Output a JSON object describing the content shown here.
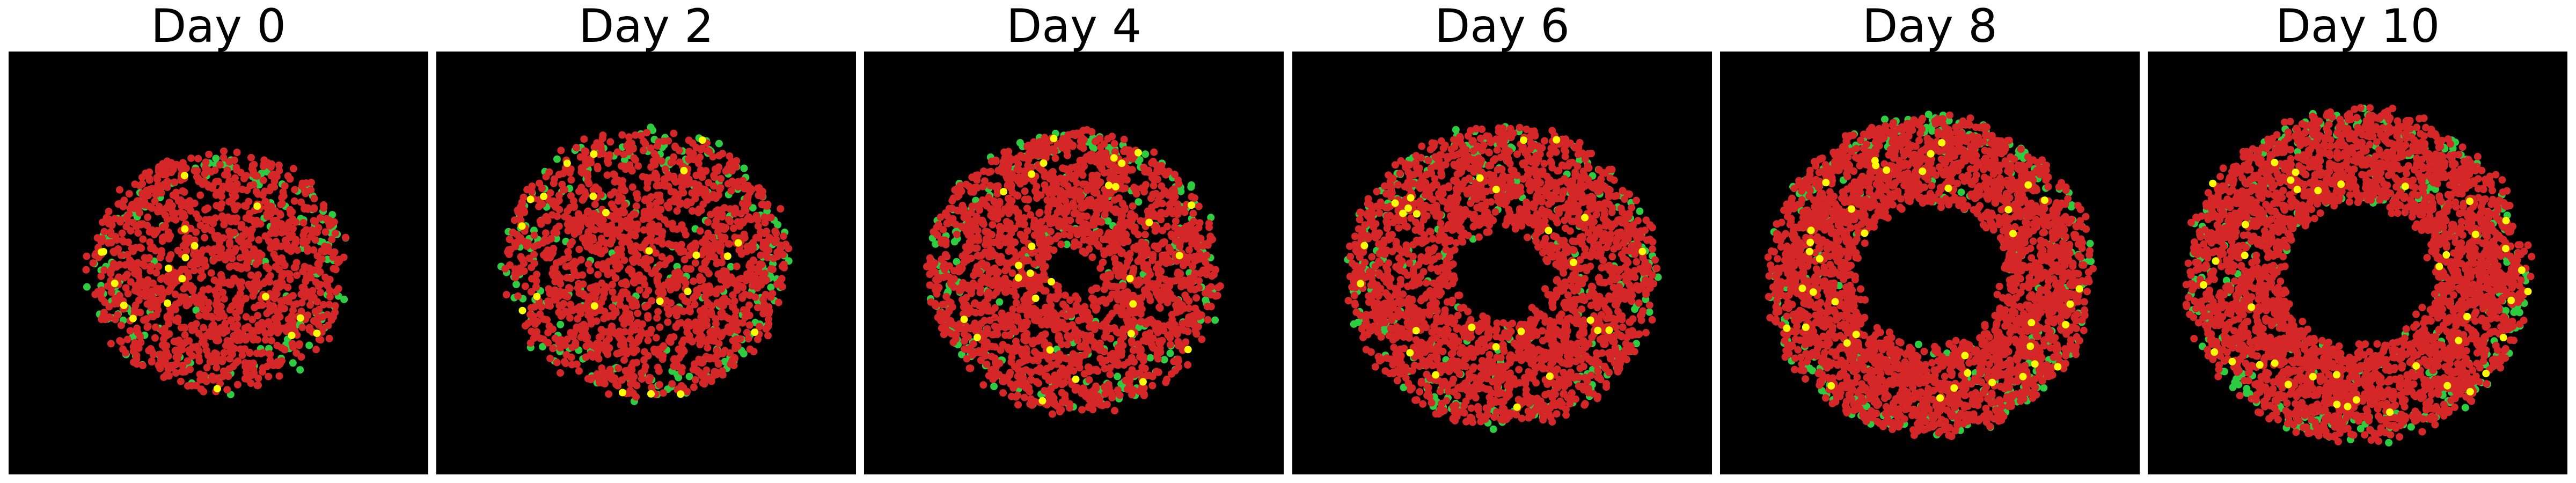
{
  "chart_data": {
    "type": "scatter",
    "panels": [
      {
        "title": "Day 0"
      },
      {
        "title": "Day 2"
      },
      {
        "title": "Day 4"
      },
      {
        "title": "Day 6"
      },
      {
        "title": "Day 8"
      },
      {
        "title": "Day 10"
      }
    ],
    "point_colors": [
      "#d62728",
      "#2ecc40",
      "#ffff00"
    ],
    "background": "#000000",
    "axes_visible": false,
    "grid": false
  }
}
